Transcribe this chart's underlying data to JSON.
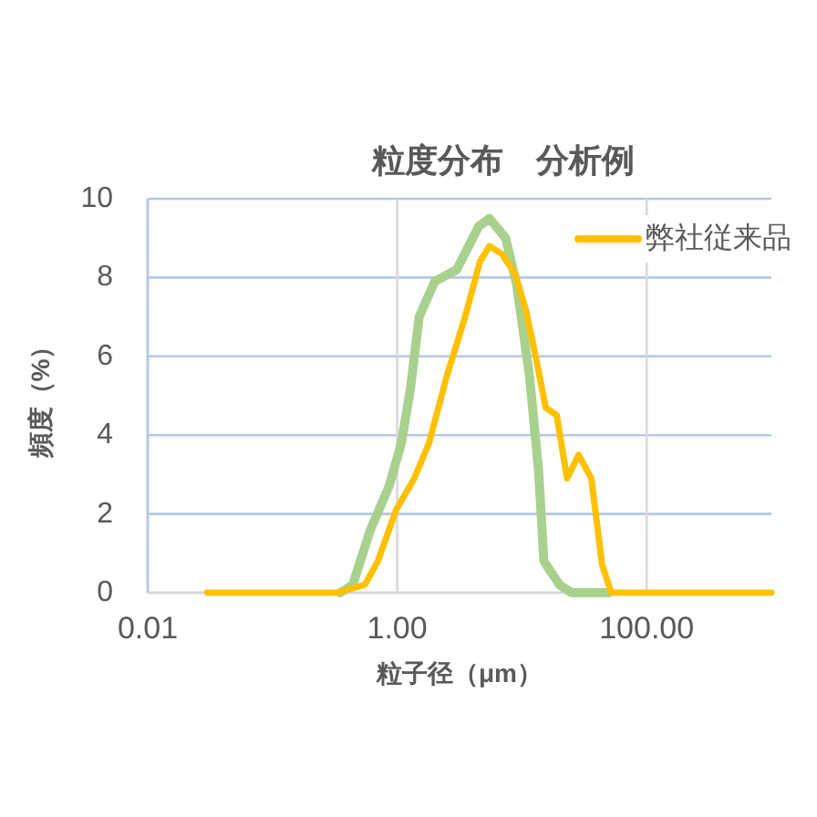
{
  "chart_data": {
    "type": "line",
    "title": "粒度分布　分析例",
    "xlabel": "粒子径（μm）",
    "ylabel": "頻度（%）",
    "log": "x",
    "xlim": [
      0.01,
      1000
    ],
    "xticks": [
      0.01,
      {
        "value": 1,
        "label": "1.00"
      },
      {
        "value": 100,
        "label": "100.00"
      }
    ],
    "ylim": [
      0,
      10
    ],
    "yticks": [
      0,
      2,
      4,
      6,
      8,
      10
    ],
    "grid": true,
    "legend": "top right",
    "series": [
      {
        "color": "#a9d18e",
        "x": [
          0.35,
          0.44,
          0.61,
          0.86,
          1.08,
          1.28,
          1.5,
          2.0,
          3.0,
          4.5,
          5.5,
          7.4,
          9.1,
          11.5,
          13.6,
          15,
          20,
          25,
          50
        ],
        "values": [
          0,
          0.2,
          1.6,
          2.7,
          3.8,
          5.2,
          7.0,
          7.9,
          8.2,
          9.3,
          9.5,
          9.0,
          7.8,
          5.5,
          3.1,
          0.8,
          0.2,
          0,
          0
        ]
      },
      {
        "name": "弊社従来品",
        "color": "#ffc000",
        "x": [
          0.03,
          0.33,
          0.55,
          0.7,
          0.98,
          1.37,
          1.8,
          2.5,
          3.5,
          4.6,
          5.5,
          6.9,
          8.8,
          10.7,
          12.7,
          15.5,
          19,
          23,
          28.5,
          36,
          44,
          52,
          1000
        ],
        "values": [
          0,
          0,
          0.2,
          0.8,
          2.1,
          2.9,
          3.8,
          5.5,
          7.0,
          8.4,
          8.8,
          8.6,
          8.1,
          7.2,
          6.1,
          4.7,
          4.5,
          2.9,
          3.5,
          2.9,
          0.7,
          0,
          0
        ]
      }
    ]
  }
}
